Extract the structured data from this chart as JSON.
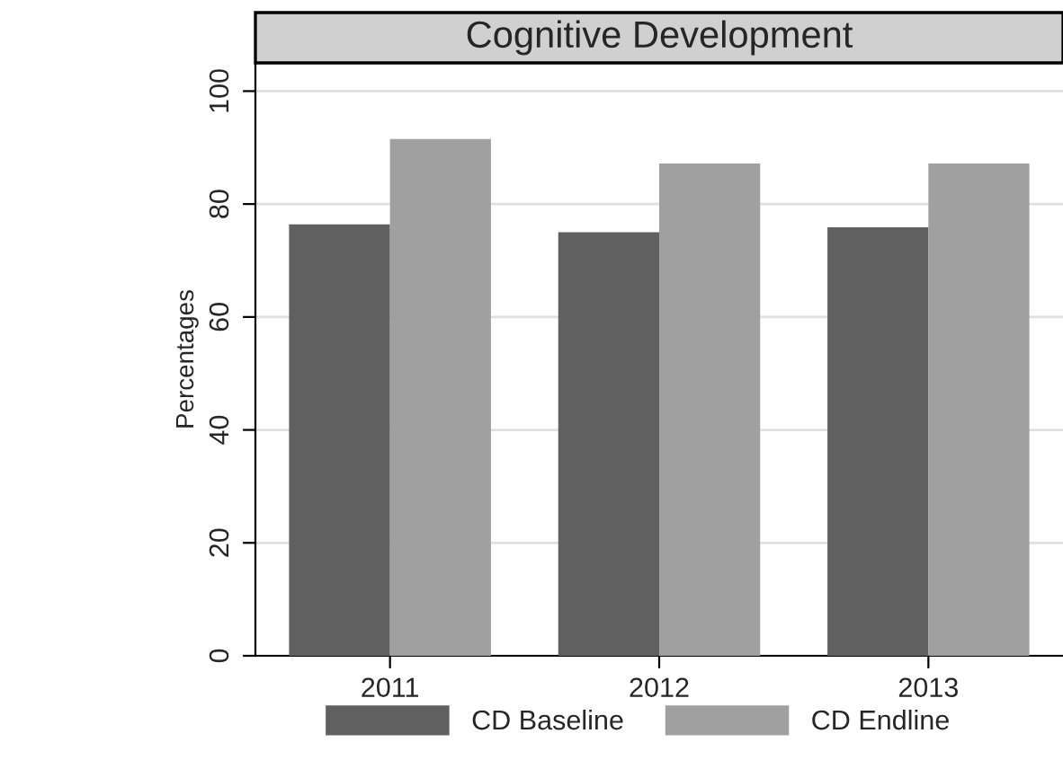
{
  "chart_data": {
    "type": "bar",
    "title": "Cognitive Development",
    "ylabel": "Percentages",
    "categories": [
      "2011",
      "2012",
      "2013"
    ],
    "series": [
      {
        "name": "CD Baseline",
        "color": "#606060",
        "values": [
          76.4,
          75.0,
          75.9
        ]
      },
      {
        "name": "CD Endline",
        "color": "#a0a0a0",
        "values": [
          91.5,
          87.2,
          87.2
        ]
      }
    ],
    "ylim": [
      0,
      105
    ],
    "yticks": [
      0,
      20,
      40,
      60,
      80,
      100
    ],
    "grid": "y",
    "legend": "bottom"
  }
}
